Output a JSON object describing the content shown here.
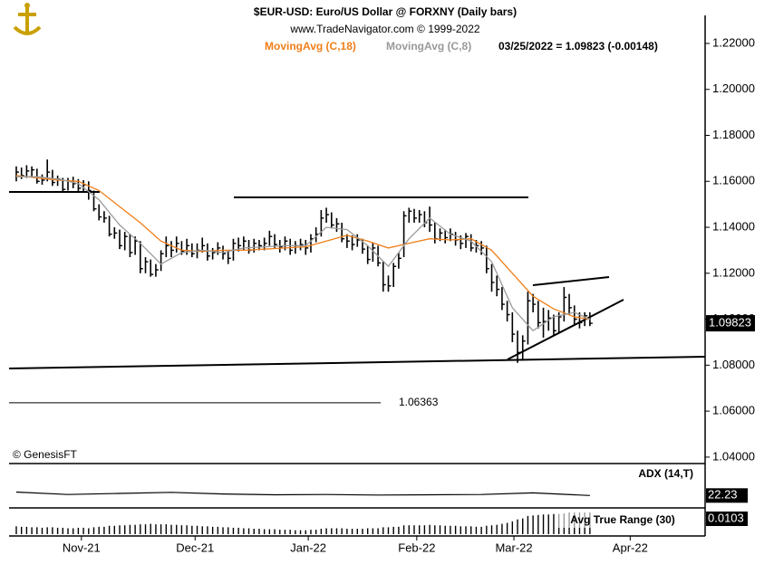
{
  "chart_data": {
    "type": "ohlc",
    "title": "$EUR-USD:  Euro/US Dollar @ FORXNY  (Daily bars)",
    "subtitle": "www.TradeNavigator.com © 1999-2022",
    "status": "03/25/2022 = 1.09823 (-0.00148)",
    "source": "© GenesisFT",
    "color": "#000000",
    "high": [
      1.1665,
      1.166,
      1.167,
      1.1665,
      1.1655,
      1.163,
      1.1695,
      1.165,
      1.1625,
      1.1615,
      1.1615,
      1.162,
      1.161,
      1.1605,
      1.16,
      1.156,
      1.15,
      1.147,
      1.145,
      1.14,
      1.139,
      1.138,
      1.137,
      1.136,
      1.134,
      1.127,
      1.126,
      1.124,
      1.13,
      1.136,
      1.134,
      1.136,
      1.134,
      1.135,
      1.133,
      1.133,
      1.1355,
      1.133,
      1.131,
      1.1335,
      1.132,
      1.13,
      1.135,
      1.1355,
      1.136,
      1.1345,
      1.135,
      1.1345,
      1.1355,
      1.1385,
      1.137,
      1.1345,
      1.136,
      1.135,
      1.134,
      1.135,
      1.1345,
      1.137,
      1.14,
      1.1475,
      1.1485,
      1.1465,
      1.144,
      1.142,
      1.137,
      1.1365,
      1.137,
      1.135,
      1.132,
      1.1335,
      1.132,
      1.125,
      1.119,
      1.1245,
      1.129,
      1.147,
      1.1485,
      1.148,
      1.1475,
      1.147,
      1.149,
      1.142,
      1.1395,
      1.139,
      1.1395,
      1.138,
      1.1365,
      1.1375,
      1.137,
      1.1345,
      1.134,
      1.132,
      1.124,
      1.119,
      1.114,
      1.108,
      1.103,
      1.095,
      1.093,
      1.112,
      1.111,
      1.108,
      1.105,
      1.104,
      1.102,
      1.103,
      1.114,
      1.111,
      1.106,
      1.103,
      1.103,
      1.103
    ],
    "low": [
      1.16,
      1.161,
      1.1615,
      1.162,
      1.159,
      1.1585,
      1.16,
      1.158,
      1.158,
      1.155,
      1.156,
      1.157,
      1.155,
      1.1555,
      1.152,
      1.147,
      1.143,
      1.142,
      1.136,
      1.135,
      1.1305,
      1.13,
      1.127,
      1.128,
      1.12,
      1.12,
      1.1185,
      1.1185,
      1.121,
      1.127,
      1.127,
      1.129,
      1.128,
      1.128,
      1.127,
      1.1265,
      1.129,
      1.1255,
      1.126,
      1.128,
      1.126,
      1.124,
      1.1255,
      1.1295,
      1.13,
      1.1285,
      1.129,
      1.13,
      1.13,
      1.132,
      1.131,
      1.129,
      1.13,
      1.128,
      1.1285,
      1.13,
      1.128,
      1.129,
      1.1335,
      1.136,
      1.142,
      1.1395,
      1.138,
      1.1335,
      1.131,
      1.13,
      1.1315,
      1.1285,
      1.124,
      1.125,
      1.123,
      1.112,
      1.112,
      1.114,
      1.122,
      1.127,
      1.142,
      1.142,
      1.142,
      1.14,
      1.138,
      1.133,
      1.134,
      1.133,
      1.134,
      1.132,
      1.1305,
      1.131,
      1.1295,
      1.129,
      1.128,
      1.12,
      1.112,
      1.11,
      1.104,
      1.099,
      1.09,
      1.081,
      1.082,
      1.089,
      1.103,
      1.096,
      1.092,
      1.095,
      1.093,
      1.094,
      1.099,
      1.102,
      1.0975,
      1.096,
      1.097,
      1.097
    ],
    "close": [
      1.164,
      1.1625,
      1.1645,
      1.165,
      1.16,
      1.1605,
      1.164,
      1.1595,
      1.161,
      1.1565,
      1.16,
      1.159,
      1.157,
      1.1585,
      1.156,
      1.148,
      1.1445,
      1.144,
      1.137,
      1.1375,
      1.132,
      1.136,
      1.129,
      1.134,
      1.122,
      1.125,
      1.1195,
      1.1215,
      1.1285,
      1.132,
      1.13,
      1.133,
      1.1295,
      1.132,
      1.1285,
      1.13,
      1.132,
      1.1275,
      1.129,
      1.131,
      1.1285,
      1.1265,
      1.133,
      1.132,
      1.134,
      1.13,
      1.133,
      1.132,
      1.133,
      1.136,
      1.1325,
      1.1315,
      1.134,
      1.13,
      1.132,
      1.1325,
      1.131,
      1.135,
      1.137,
      1.144,
      1.1455,
      1.141,
      1.1415,
      1.135,
      1.134,
      1.1325,
      1.1345,
      1.1305,
      1.126,
      1.131,
      1.1245,
      1.115,
      1.1145,
      1.123,
      1.1265,
      1.145,
      1.147,
      1.144,
      1.1455,
      1.142,
      1.141,
      1.135,
      1.1375,
      1.1355,
      1.137,
      1.1345,
      1.133,
      1.136,
      1.131,
      1.132,
      1.131,
      1.122,
      1.116,
      1.113,
      1.1065,
      1.102,
      1.0935,
      1.0855,
      1.0905,
      1.108,
      1.1065,
      1.0985,
      1.099,
      1.1005,
      1.095,
      1.101,
      1.1095,
      1.105,
      1.1,
      1.0985,
      1.1015,
      1.09823
    ],
    "moving_averages": [
      {
        "name": "MovingAvg (C,18)",
        "color": "#f07f1a",
        "x": [
          0,
          4,
          8,
          12,
          16,
          20,
          24,
          28,
          32,
          36,
          40,
          44,
          48,
          52,
          56,
          60,
          64,
          68,
          72,
          76,
          80,
          84,
          88,
          92,
          96,
          100,
          104,
          108,
          111
        ],
        "values": [
          1.1625,
          1.1615,
          1.1605,
          1.16,
          1.156,
          1.149,
          1.142,
          1.134,
          1.13,
          1.1295,
          1.13,
          1.13,
          1.1305,
          1.131,
          1.1315,
          1.134,
          1.1365,
          1.134,
          1.131,
          1.133,
          1.135,
          1.1345,
          1.135,
          1.13,
          1.12,
          1.11,
          1.1045,
          1.101,
          1.1
        ]
      },
      {
        "name": "MovingAvg (C,8)",
        "color": "#9a9a9a",
        "x": [
          0,
          4,
          8,
          12,
          16,
          20,
          24,
          28,
          32,
          36,
          40,
          44,
          48,
          52,
          56,
          60,
          64,
          68,
          72,
          76,
          80,
          84,
          88,
          92,
          96,
          100,
          104,
          108,
          111
        ],
        "values": [
          1.162,
          1.162,
          1.161,
          1.159,
          1.152,
          1.141,
          1.133,
          1.124,
          1.129,
          1.13,
          1.129,
          1.131,
          1.1315,
          1.132,
          1.132,
          1.14,
          1.139,
          1.132,
          1.123,
          1.135,
          1.144,
          1.137,
          1.134,
          1.125,
          1.105,
          1.095,
          1.101,
          1.103,
          1.1
        ]
      }
    ],
    "levels": [
      1.06363
    ],
    "xlim": [
      -1.4,
      133.3
    ],
    "xticks": [
      {
        "value": 12.6,
        "label": "Nov-21"
      },
      {
        "value": 34.6,
        "label": "Dec-21"
      },
      {
        "value": 56.5,
        "label": "Jan-22"
      },
      {
        "value": 77.5,
        "label": "Feb-22"
      },
      {
        "value": 96.3,
        "label": "Mar-22"
      },
      {
        "value": 118.8,
        "label": "Apr-22"
      }
    ],
    "ylim": [
      1.0372,
      1.2322
    ],
    "yticks": [
      {
        "value": 1.04,
        "label": "1.04000"
      },
      {
        "value": 1.06,
        "label": "1.06000"
      },
      {
        "value": 1.08,
        "label": "1.08000"
      },
      {
        "value": 1.1,
        "label": "1.10000"
      },
      {
        "value": 1.12,
        "label": "1.12000"
      },
      {
        "value": 1.14,
        "label": "1.14000"
      },
      {
        "value": 1.16,
        "label": "1.16000"
      },
      {
        "value": 1.18,
        "label": "1.18000"
      },
      {
        "value": 1.2,
        "label": "1.20000"
      },
      {
        "value": 1.22,
        "label": "1.22000"
      }
    ],
    "indicators": [
      {
        "type": "line",
        "name": "ADX (14,T)",
        "color": "#000000",
        "x": [
          0,
          10,
          20,
          30,
          40,
          50,
          60,
          70,
          80,
          90,
          100,
          111
        ],
        "values": [
          23.5,
          22.6,
          23.0,
          23.4,
          22.8,
          22.5,
          22.6,
          22.4,
          22.5,
          22.6,
          23.2,
          22.23
        ],
        "ylim": [
          18,
          33
        ]
      },
      {
        "type": "bar",
        "name": "Avg True Range (30)",
        "color": "#000000",
        "values": [
          0.0076,
          0.0075,
          0.0075,
          0.0074,
          0.0074,
          0.0073,
          0.0074,
          0.0074,
          0.0073,
          0.0073,
          0.0072,
          0.0072,
          0.0073,
          0.0073,
          0.0072,
          0.0074,
          0.0075,
          0.0075,
          0.0077,
          0.0077,
          0.0078,
          0.0078,
          0.0079,
          0.0079,
          0.008,
          0.008,
          0.0081,
          0.008,
          0.008,
          0.008,
          0.0079,
          0.0079,
          0.0078,
          0.0078,
          0.0077,
          0.0077,
          0.0076,
          0.0076,
          0.0075,
          0.0075,
          0.0074,
          0.0074,
          0.0073,
          0.0073,
          0.0072,
          0.0072,
          0.0071,
          0.0071,
          0.007,
          0.007,
          0.007,
          0.0069,
          0.0069,
          0.0069,
          0.0068,
          0.0068,
          0.0068,
          0.0069,
          0.0069,
          0.0071,
          0.0072,
          0.0072,
          0.0072,
          0.0072,
          0.0071,
          0.0071,
          0.0071,
          0.0071,
          0.0072,
          0.0072,
          0.0072,
          0.0074,
          0.0074,
          0.0075,
          0.0075,
          0.0078,
          0.0078,
          0.0078,
          0.0078,
          0.0078,
          0.0079,
          0.0078,
          0.0078,
          0.0077,
          0.0077,
          0.0077,
          0.0076,
          0.0076,
          0.0076,
          0.0075,
          0.0075,
          0.0077,
          0.0078,
          0.0079,
          0.0081,
          0.0083,
          0.0086,
          0.009,
          0.0092,
          0.0097,
          0.0098,
          0.0099,
          0.01,
          0.01,
          0.0101,
          0.0101,
          0.0102,
          0.0103,
          0.0103,
          0.0103,
          0.0103,
          0.0103
        ],
        "ylim": [
          0.006,
          0.0106
        ]
      }
    ]
  }
}
